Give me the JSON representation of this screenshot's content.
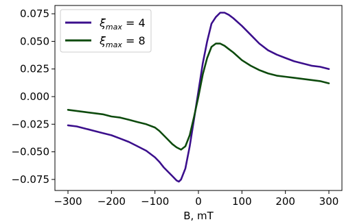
{
  "chart_data": {
    "type": "line",
    "title": "",
    "xlabel": "B, mT",
    "ylabel": "",
    "xlim": [
      -330,
      330
    ],
    "ylim": [
      -0.085,
      0.0825
    ],
    "xticks": [
      -300,
      -200,
      -100,
      0,
      100,
      200,
      300
    ],
    "xtick_labels": [
      "−300",
      "−200",
      "−100",
      "0",
      "100",
      "200",
      "300"
    ],
    "yticks": [
      -0.075,
      -0.05,
      -0.025,
      0.0,
      0.025,
      0.05,
      0.075
    ],
    "ytick_labels": [
      "−0.075",
      "−0.050",
      "−0.025",
      "0.000",
      "0.025",
      "0.050",
      "0.075"
    ],
    "grid": false,
    "legend_position": "top-left",
    "series": [
      {
        "name": "ξ_max = 4",
        "legend_symbol": "ξ",
        "legend_sub": "max",
        "legend_rest": " = 4",
        "color": "#3b0f8c",
        "x": [
          -300,
          -280,
          -260,
          -240,
          -220,
          -200,
          -180,
          -160,
          -140,
          -120,
          -100,
          -90,
          -80,
          -70,
          -60,
          -50,
          -45,
          -40,
          -30,
          -20,
          -10,
          0,
          10,
          20,
          30,
          40,
          50,
          60,
          70,
          80,
          100,
          120,
          140,
          160,
          180,
          200,
          220,
          240,
          260,
          280,
          300
        ],
        "y": [
          -0.026,
          -0.027,
          -0.029,
          -0.031,
          -0.033,
          -0.035,
          -0.038,
          -0.041,
          -0.045,
          -0.049,
          -0.055,
          -0.059,
          -0.064,
          -0.068,
          -0.072,
          -0.076,
          -0.077,
          -0.075,
          -0.065,
          -0.045,
          -0.02,
          0.005,
          0.03,
          0.05,
          0.066,
          0.072,
          0.076,
          0.076,
          0.074,
          0.071,
          0.064,
          0.056,
          0.048,
          0.042,
          0.038,
          0.035,
          0.032,
          0.03,
          0.028,
          0.027,
          0.025
        ]
      },
      {
        "name": "ξ_max = 8",
        "legend_symbol": "ξ",
        "legend_sub": "max",
        "legend_rest": " = 8",
        "color": "#0d4a0d",
        "x": [
          -300,
          -280,
          -260,
          -240,
          -220,
          -200,
          -180,
          -160,
          -140,
          -120,
          -100,
          -90,
          -80,
          -70,
          -60,
          -50,
          -40,
          -30,
          -20,
          -10,
          0,
          10,
          20,
          30,
          40,
          50,
          60,
          70,
          80,
          100,
          120,
          140,
          160,
          180,
          200,
          220,
          240,
          260,
          280,
          300
        ],
        "y": [
          -0.012,
          -0.013,
          -0.014,
          -0.015,
          -0.016,
          -0.018,
          -0.019,
          -0.021,
          -0.023,
          -0.025,
          -0.028,
          -0.031,
          -0.035,
          -0.039,
          -0.043,
          -0.046,
          -0.048,
          -0.045,
          -0.035,
          -0.018,
          0.0,
          0.02,
          0.035,
          0.045,
          0.048,
          0.048,
          0.046,
          0.043,
          0.04,
          0.033,
          0.028,
          0.024,
          0.021,
          0.019,
          0.018,
          0.017,
          0.016,
          0.015,
          0.014,
          0.012
        ]
      }
    ]
  }
}
